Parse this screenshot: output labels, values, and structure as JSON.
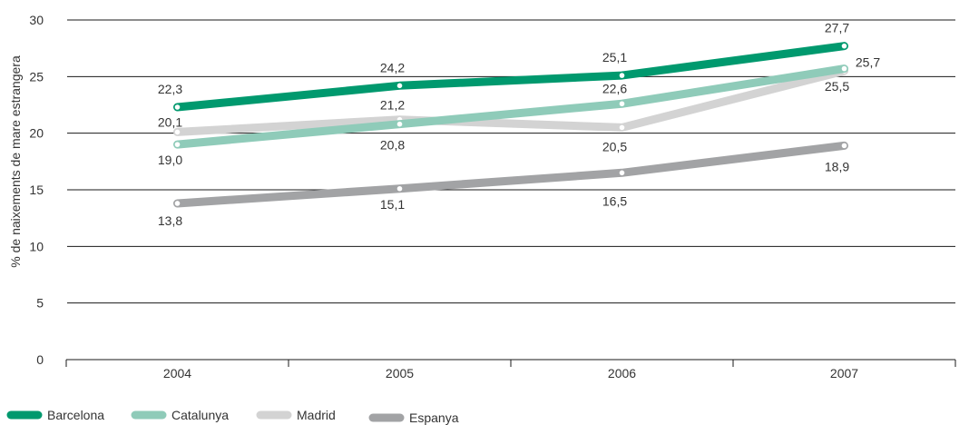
{
  "chart_data": {
    "type": "line",
    "title": "",
    "xlabel": "",
    "ylabel": "% de naixements de mare estrangera",
    "categories": [
      "2004",
      "2005",
      "2006",
      "2007"
    ],
    "ylim": [
      0,
      30
    ],
    "yticks": [
      0,
      5,
      10,
      15,
      20,
      25,
      30
    ],
    "grid": true,
    "legend_position": "bottom-left",
    "series": [
      {
        "name": "Barcelona",
        "color": "#00996e",
        "values": [
          22.3,
          24.2,
          25.1,
          27.7
        ],
        "labels": [
          "22,3",
          "24,2",
          "25,1",
          "27,7"
        ]
      },
      {
        "name": "Catalunya",
        "color": "#8fcbb9",
        "values": [
          19.0,
          20.8,
          22.6,
          25.7
        ],
        "labels": [
          "19,0",
          "20,8",
          "22,6",
          "25,7"
        ]
      },
      {
        "name": "Madrid",
        "color": "#d3d3d3",
        "values": [
          20.1,
          21.2,
          20.5,
          25.5
        ],
        "labels": [
          "20,1",
          "21,2",
          "20,5",
          "25,5"
        ]
      },
      {
        "name": "Espanya",
        "color": "#a2a3a5",
        "values": [
          13.8,
          15.1,
          16.5,
          18.9
        ],
        "labels": [
          "13,8",
          "15,1",
          "16,5",
          "18,9"
        ]
      }
    ]
  }
}
